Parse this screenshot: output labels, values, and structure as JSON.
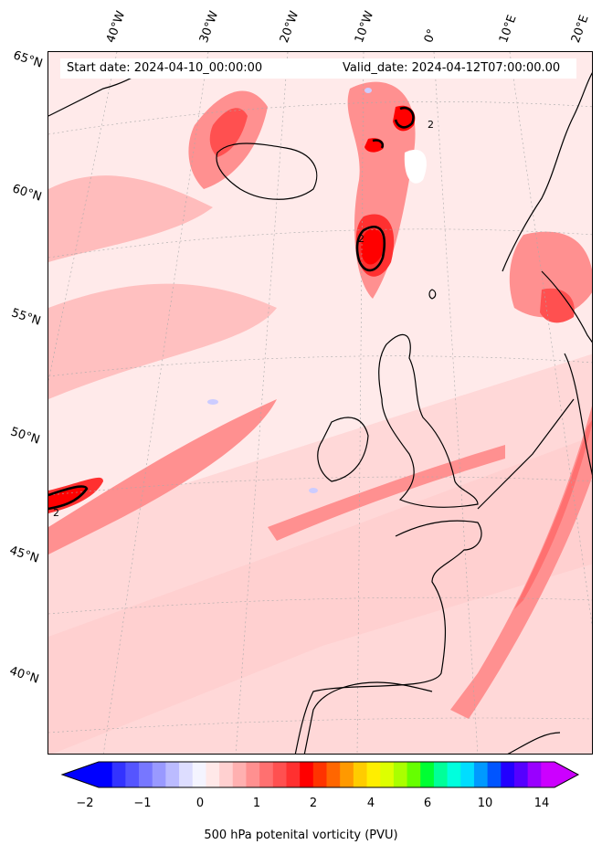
{
  "header": {
    "start_date": "Start date: 2024-04-10_00:00:00",
    "valid_date": "Valid_date: 2024-04-12T07:00:00.00"
  },
  "lon_labels": [
    "40°W",
    "30°W",
    "20°W",
    "10°W",
    "0°",
    "10°E",
    "20°E"
  ],
  "lat_labels": [
    "65°N",
    "60°N",
    "55°N",
    "50°N",
    "45°N",
    "40°N"
  ],
  "contour_label": "2",
  "colorbar": {
    "label": "500 hPa potenital vorticity (PVU)",
    "ticks": [
      "−2",
      "−1",
      "0",
      "1",
      "2",
      "4",
      "6",
      "10",
      "14"
    ],
    "colors": [
      "#0000ff",
      "#3333ff",
      "#5555ff",
      "#7777ff",
      "#9999ff",
      "#bbbbff",
      "#ddddff",
      "#f4f4ff",
      "#ffe8e8",
      "#ffd0d0",
      "#ffb0b0",
      "#ff9090",
      "#ff7070",
      "#ff5050",
      "#ff3030",
      "#ff0000",
      "#ff3300",
      "#ff6600",
      "#ff9900",
      "#ffcc00",
      "#ffee00",
      "#ddff00",
      "#aaff00",
      "#66ff00",
      "#00ff33",
      "#00ff99",
      "#00ffdd",
      "#00ddff",
      "#0099ff",
      "#0055ff",
      "#2200ff",
      "#5500ff",
      "#9900ff",
      "#cc00ff"
    ]
  },
  "colors": {
    "background_pv": "#ffeaea",
    "low_pv": "#ffd0d0",
    "mid_pv": "#ff9090",
    "high_pv": "#ff3030",
    "peak_pv": "#ff0000",
    "negative_pv": "#ddddff",
    "coastline": "#000000"
  }
}
